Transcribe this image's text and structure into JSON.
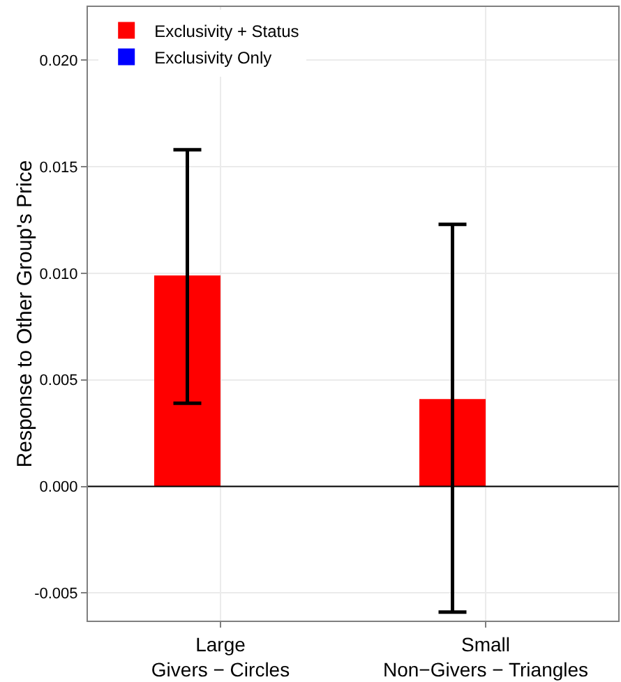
{
  "chart_data": {
    "type": "bar",
    "ylabel": "Response to Other Group's Price",
    "categories": [
      "Large\nGivers − Circles",
      "Small\nNon−Givers − Triangles"
    ],
    "series": [
      {
        "name": "Exclusivity + Status",
        "color": "#ff0000",
        "values": [
          0.0099,
          0.0041
        ],
        "errors": [
          [
            0.0039,
            0.0158
          ],
          [
            -0.0059,
            0.0123
          ]
        ]
      },
      {
        "name": "Exclusivity Only",
        "color": "#0000ff",
        "values": [
          null,
          null
        ]
      }
    ],
    "ylim": [
      -0.0063,
      0.0225
    ],
    "yticks": [
      {
        "value": -0.005,
        "label": "-0.005"
      },
      {
        "value": 0,
        "label": "0.000"
      },
      {
        "value": 0.005,
        "label": "0.005"
      },
      {
        "value": 0.01,
        "label": "0.010"
      },
      {
        "value": 0.015,
        "label": "0.015"
      },
      {
        "value": 0.02,
        "label": "0.020"
      }
    ],
    "ref_lines": [
      {
        "axis": "y",
        "value": 0,
        "color": "#000000"
      }
    ],
    "grid": true,
    "legend": "top left"
  }
}
